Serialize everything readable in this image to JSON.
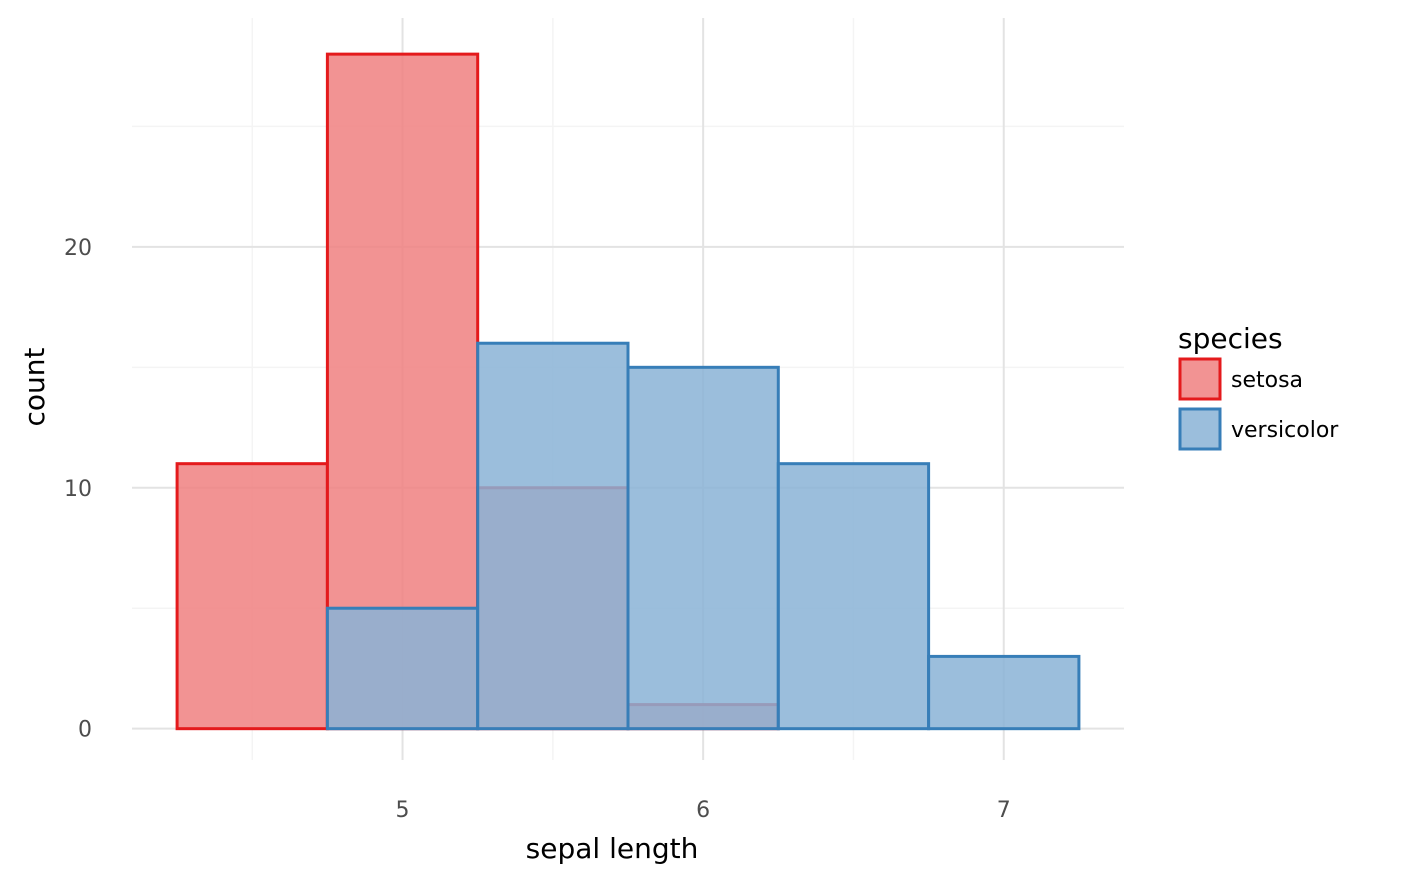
{
  "chart_data": {
    "type": "bar",
    "subtype": "histogram",
    "xlabel": "sepal length",
    "ylabel": "count",
    "xlim": [
      4.1,
      7.4
    ],
    "ylim": [
      -1.3,
      29.5
    ],
    "x_ticks": [
      5,
      6,
      7
    ],
    "x_minor_ticks": [
      4.5,
      5.5,
      6.5
    ],
    "y_ticks": [
      0,
      10,
      20
    ],
    "y_minor_ticks": [
      5,
      15,
      25
    ],
    "grid": true,
    "legend": {
      "title": "species",
      "placement": "right"
    },
    "bins": [
      [
        4.25,
        4.75
      ],
      [
        4.75,
        5.25
      ],
      [
        5.25,
        5.75
      ],
      [
        5.75,
        6.25
      ],
      [
        6.25,
        6.75
      ],
      [
        6.75,
        7.25
      ]
    ],
    "series": [
      {
        "name": "setosa",
        "color": "#e41a1c",
        "fill": "#f08080",
        "values": [
          11,
          28,
          10,
          1,
          0,
          0
        ]
      },
      {
        "name": "versicolor",
        "color": "#377eb8",
        "fill": "#8ab3d6",
        "values": [
          0,
          5,
          16,
          15,
          11,
          3
        ]
      }
    ]
  }
}
